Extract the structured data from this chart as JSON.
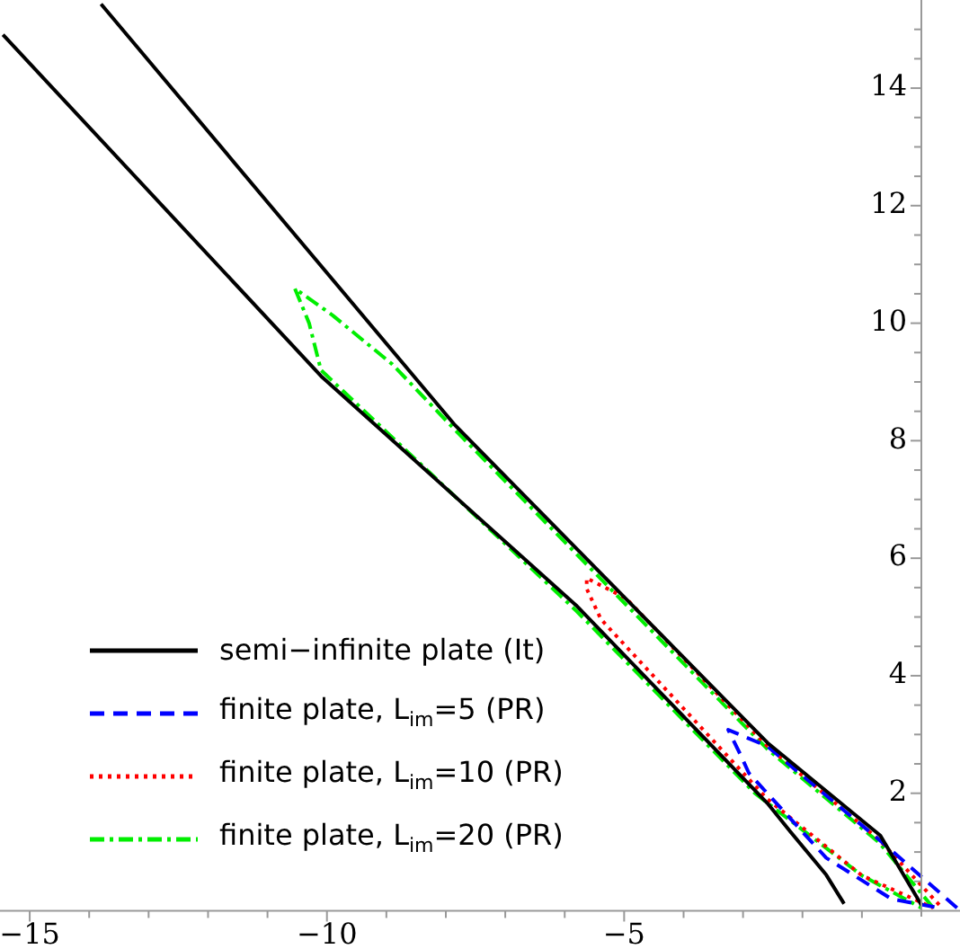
{
  "chart_data": {
    "type": "line",
    "xlim": [
      -15.5,
      0.65
    ],
    "ylim": [
      -0.1,
      15.5
    ],
    "xticks": [
      -15,
      {
        "value": -14,
        "label": null
      },
      {
        "value": -13,
        "label": null
      },
      {
        "value": -12,
        "label": null
      },
      {
        "value": -11,
        "label": null
      },
      -10,
      {
        "value": -9,
        "label": null
      },
      {
        "value": -8,
        "label": null
      },
      {
        "value": -7,
        "label": null
      },
      {
        "value": -6,
        "label": null
      },
      -5,
      {
        "value": -4,
        "label": null
      },
      {
        "value": -3,
        "label": null
      },
      {
        "value": -2,
        "label": null
      },
      {
        "value": -1,
        "label": null
      }
    ],
    "yticks": [
      {
        "value": 0.5,
        "label": null
      },
      {
        "value": 1,
        "label": null
      },
      {
        "value": 1.5,
        "label": null
      },
      2,
      {
        "value": 2.5,
        "label": null
      },
      {
        "value": 3,
        "label": null
      },
      {
        "value": 3.5,
        "label": null
      },
      4,
      {
        "value": 4.5,
        "label": null
      },
      {
        "value": 5,
        "label": null
      },
      {
        "value": 5.5,
        "label": null
      },
      6,
      {
        "value": 6.5,
        "label": null
      },
      {
        "value": 7,
        "label": null
      },
      {
        "value": 7.5,
        "label": null
      },
      8,
      {
        "value": 8.5,
        "label": null
      },
      {
        "value": 9,
        "label": null
      },
      {
        "value": 9.5,
        "label": null
      },
      10,
      {
        "value": 10.5,
        "label": null
      },
      {
        "value": 11,
        "label": null
      },
      {
        "value": 11.5,
        "label": null
      },
      12,
      {
        "value": 12.5,
        "label": null
      },
      {
        "value": 13,
        "label": null
      },
      {
        "value": 13.5,
        "label": null
      },
      14,
      {
        "value": 14.5,
        "label": null
      },
      {
        "value": 15,
        "label": null
      }
    ],
    "legend": "bottom left",
    "marker": "none",
    "series": [
      {
        "name": "semi−infinite plate (It)",
        "color": "#000000",
        "line_style": "solid",
        "x": [
          -15.45,
          -10.1,
          -5.81,
          -2.59,
          -2.2,
          -1.6,
          -1.3,
          null,
          -13.8,
          -7.86,
          -2.59,
          -0.69,
          0
        ],
        "values": [
          14.91,
          9.1,
          5.2,
          1.83,
          1.34,
          0.61,
          0.12,
          null,
          15.43,
          8.28,
          2.86,
          1.28,
          0.1
        ]
      },
      {
        "name": "finite plate, L$_{im}$=5 (PR)",
        "color": "#0000ff",
        "line_style": "dashed",
        "x": [
          0.6,
          -0.7,
          -2.59,
          -3.25,
          -3.04,
          -2.9,
          -1.6,
          -0.5,
          0.3
        ],
        "values": [
          0.05,
          1.2,
          2.8,
          3.08,
          2.65,
          2.34,
          0.9,
          0.2,
          0.05
        ]
      },
      {
        "name": "finite plate, L$_{im}$=10 (PR)",
        "color": "#ff0000",
        "line_style": "dotted",
        "x": [
          0.3,
          -0.7,
          -2.59,
          -4.97,
          -5.63,
          -5.63,
          -5.39,
          -2.59,
          -1,
          0.2
        ],
        "values": [
          0.1,
          1.2,
          2.8,
          5.32,
          5.66,
          5.48,
          4.96,
          1.9,
          0.6,
          0.05
        ]
      },
      {
        "name": "finite plate, L$_{im}$=20 (PR)",
        "color": "#00ee00",
        "line_style": "dashdot",
        "x": [
          0.2,
          -0.7,
          -2.59,
          -7.86,
          -8.9,
          -9.9,
          -10.54,
          -10.3,
          -10.1,
          -5.8,
          -2.8,
          -1,
          0
        ],
        "values": [
          0.05,
          1.15,
          2.75,
          8.2,
          9.3,
          10.13,
          10.59,
          10.0,
          9.2,
          5.1,
          2.0,
          0.6,
          0.05
        ]
      }
    ]
  }
}
